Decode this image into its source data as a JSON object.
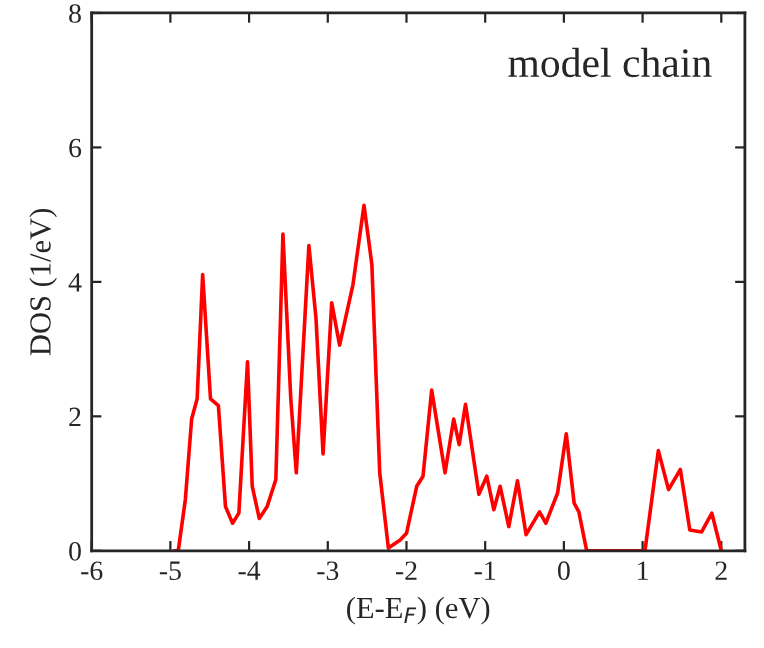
{
  "chart_data": {
    "type": "line",
    "xlabel": "(E-E$_{F}$) (eV)",
    "ylabel": "DOS (1/eV)",
    "annotations": [
      "model chain"
    ],
    "xlim": [
      -6,
      2.3
    ],
    "xticks": [
      -6,
      -5,
      -4,
      -3,
      -2,
      -1,
      0,
      1,
      2
    ],
    "ylim": [
      0,
      8
    ],
    "yticks": [
      0,
      2,
      4,
      6,
      8
    ],
    "grid": false,
    "legend": false,
    "marker": "none",
    "line_style": "solid",
    "series": [
      {
        "color": "#ff0000",
        "x": [
          -4.95,
          -4.9,
          -4.81,
          -4.73,
          -4.66,
          -4.59,
          -4.49,
          -4.39,
          -4.3,
          -4.21,
          -4.13,
          -4.02,
          -3.96,
          -3.87,
          -3.77,
          -3.66,
          -3.57,
          -3.47,
          -3.4,
          -3.24,
          -3.15,
          -3.06,
          -2.95,
          -2.85,
          -2.68,
          -2.54,
          -2.44,
          -2.34,
          -2.23,
          -2.08,
          -2.0,
          -1.87,
          -1.79,
          -1.68,
          -1.51,
          -1.4,
          -1.33,
          -1.25,
          -1.08,
          -0.98,
          -0.89,
          -0.81,
          -0.7,
          -0.59,
          -0.48,
          -0.31,
          -0.23,
          -0.08,
          0.03,
          0.13,
          0.19,
          0.29,
          1.03,
          1.2,
          1.33,
          1.48,
          1.6,
          1.75,
          1.88,
          2.0
        ],
        "values": [
          0,
          0,
          0.76,
          1.96,
          2.26,
          4.11,
          2.26,
          2.16,
          0.66,
          0.41,
          0.56,
          2.81,
          0.96,
          0.48,
          0.66,
          1.06,
          4.71,
          2.26,
          1.16,
          4.54,
          3.46,
          1.44,
          3.69,
          3.06,
          3.96,
          5.14,
          4.26,
          1.16,
          0.04,
          0.16,
          0.26,
          0.96,
          1.11,
          2.39,
          1.16,
          1.96,
          1.58,
          2.18,
          0.84,
          1.11,
          0.61,
          0.96,
          0.36,
          1.04,
          0.24,
          0.58,
          0.41,
          0.86,
          1.74,
          0.71,
          0.58,
          0,
          0,
          1.49,
          0.91,
          1.21,
          0.31,
          0.28,
          0.56,
          0
        ]
      }
    ]
  }
}
